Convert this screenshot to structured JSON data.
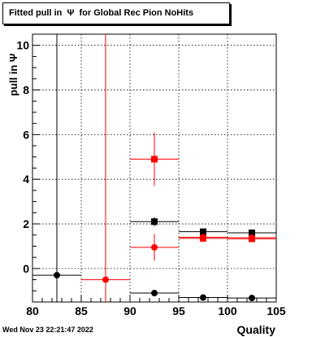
{
  "title": "Fitted pull in  Ψ  for Global Rec Pion NoHits",
  "timestamp": "Wed Nov 23 22:21:47 2022",
  "chart_data": {
    "type": "scatter",
    "xlabel": "Quality",
    "ylabel": "pull in  Ψ",
    "xlim": [
      80,
      105
    ],
    "ylim": [
      -1.5,
      10.5
    ],
    "xticks": [
      "80",
      "85",
      "90",
      "95",
      "100",
      "105"
    ],
    "yticks": [
      "0",
      "2",
      "4",
      "6",
      "8",
      "10"
    ],
    "grid": true,
    "series": [
      {
        "color": "#000000",
        "marker": "circle",
        "points": [
          {
            "x": 82.5,
            "xerr": 2.5,
            "y": -0.3,
            "yerr_low": 10.8,
            "yerr_high": 10.8
          },
          {
            "x": 92.5,
            "xerr": 2.5,
            "y": -1.1,
            "yerr_low": 0.1,
            "yerr_high": 0.1
          },
          {
            "x": 97.5,
            "xerr": 2.5,
            "y": -1.3,
            "yerr_low": 0.05,
            "yerr_high": 0.05
          },
          {
            "x": 102.5,
            "xerr": 2.5,
            "y": -1.32,
            "yerr_low": 0.05,
            "yerr_high": 0.05
          }
        ]
      },
      {
        "color": "#000000",
        "marker": "square",
        "points": [
          {
            "x": 92.5,
            "xerr": 2.5,
            "y": 2.1,
            "yerr_low": 0.2,
            "yerr_high": 0.2
          },
          {
            "x": 97.5,
            "xerr": 2.5,
            "y": 1.65,
            "yerr_low": 0.05,
            "yerr_high": 0.05
          },
          {
            "x": 102.5,
            "xerr": 2.5,
            "y": 1.6,
            "yerr_low": 0.05,
            "yerr_high": 0.05
          }
        ]
      },
      {
        "color": "#ff0000",
        "marker": "circle",
        "points": [
          {
            "x": 87.5,
            "xerr": 2.5,
            "y": -0.5,
            "yerr_low": 1.0,
            "yerr_high": 11.0
          },
          {
            "x": 92.5,
            "xerr": 2.5,
            "y": 0.95,
            "yerr_low": 0.6,
            "yerr_high": 0.6
          },
          {
            "x": 97.5,
            "xerr": 2.5,
            "y": 1.4,
            "yerr_low": 0.05,
            "yerr_high": 0.05
          },
          {
            "x": 102.5,
            "xerr": 2.5,
            "y": 1.38,
            "yerr_low": 0.05,
            "yerr_high": 0.05
          }
        ]
      },
      {
        "color": "#ff0000",
        "marker": "square",
        "points": [
          {
            "x": 92.5,
            "xerr": 2.5,
            "y": 4.9,
            "yerr_low": 1.2,
            "yerr_high": 1.2
          },
          {
            "x": 97.5,
            "xerr": 2.5,
            "y": 1.35,
            "yerr_low": 0.05,
            "yerr_high": 0.05
          },
          {
            "x": 102.5,
            "xerr": 2.5,
            "y": 1.33,
            "yerr_low": 0.05,
            "yerr_high": 0.05
          }
        ]
      }
    ]
  }
}
